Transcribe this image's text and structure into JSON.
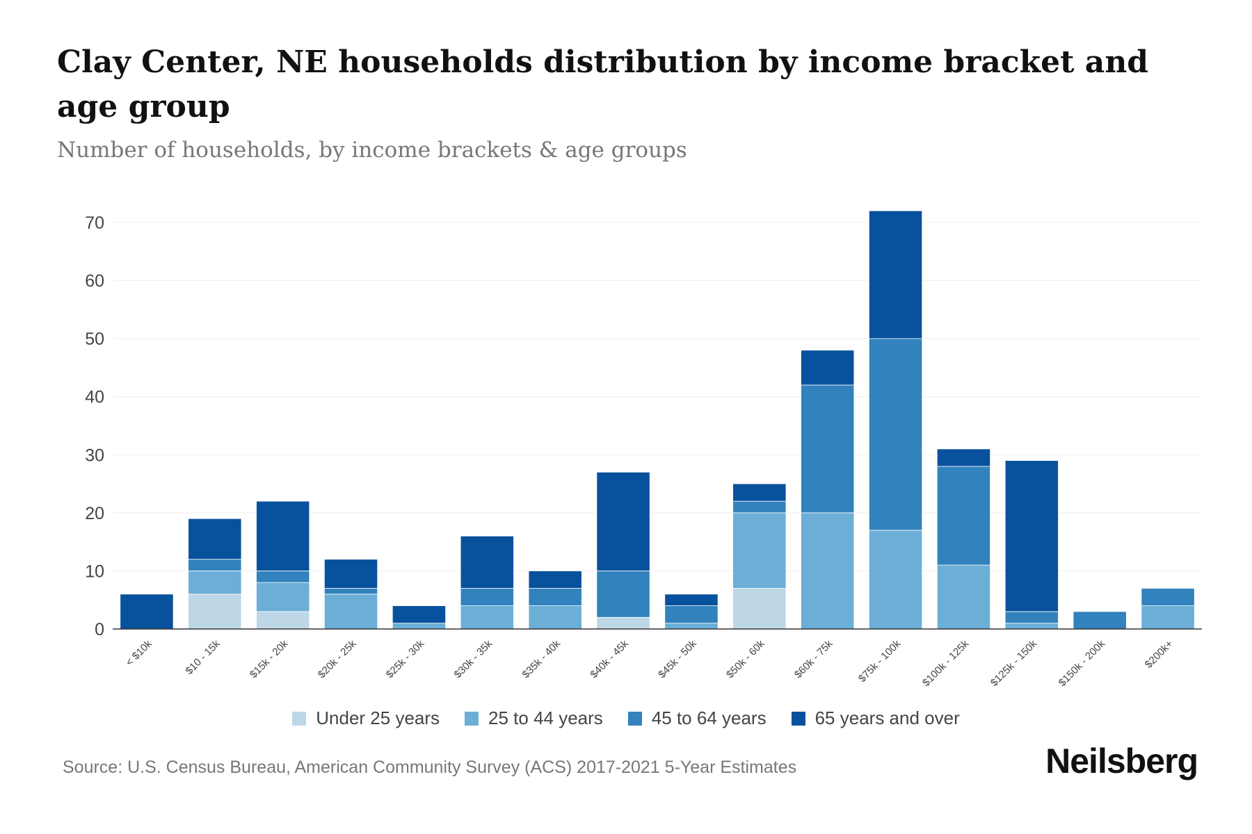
{
  "chart_data": {
    "type": "bar",
    "stacked": true,
    "title": "Clay Center, NE households distribution by income bracket and age group",
    "subtitle": "Number of households, by income brackets & age groups",
    "xlabel": "",
    "ylabel": "",
    "ylim": [
      0,
      70
    ],
    "yticks": [
      "0",
      "10",
      "20",
      "30",
      "40",
      "50",
      "60",
      "70"
    ],
    "grid": true,
    "legend_position": "bottom",
    "categories": [
      "< $10k",
      "$10 - 15k",
      "$15k - 20k",
      "$20k - 25k",
      "$25k - 30k",
      "$30k - 35k",
      "$35k - 40k",
      "$40k - 45k",
      "$45k - 50k",
      "$50k - 60k",
      "$60k - 75k",
      "$75k - 100k",
      "$100k - 125k",
      "$125k - 150k",
      "$150k - 200k",
      "$200k+"
    ],
    "series": [
      {
        "name": "Under 25 years",
        "color": "#bdd7e7",
        "values": [
          0,
          6,
          3,
          0,
          0,
          0,
          0,
          2,
          0,
          7,
          0,
          0,
          0,
          0,
          0,
          0
        ]
      },
      {
        "name": "25 to 44 years",
        "color": "#6baed6",
        "values": [
          0,
          4,
          5,
          6,
          1,
          4,
          4,
          0,
          1,
          13,
          20,
          17,
          11,
          1,
          0,
          4
        ]
      },
      {
        "name": "45 to 64 years",
        "color": "#3182bd",
        "values": [
          0,
          2,
          2,
          1,
          0,
          3,
          3,
          8,
          3,
          2,
          22,
          33,
          17,
          2,
          3,
          3
        ]
      },
      {
        "name": "65 years and over",
        "color": "#08519c",
        "values": [
          6,
          7,
          12,
          5,
          3,
          9,
          3,
          17,
          2,
          3,
          6,
          22,
          3,
          26,
          0,
          0
        ]
      }
    ]
  },
  "source": "Source: U.S. Census Bureau, American Community Survey (ACS) 2017-2021 5-Year Estimates",
  "brand": "Neilsberg"
}
